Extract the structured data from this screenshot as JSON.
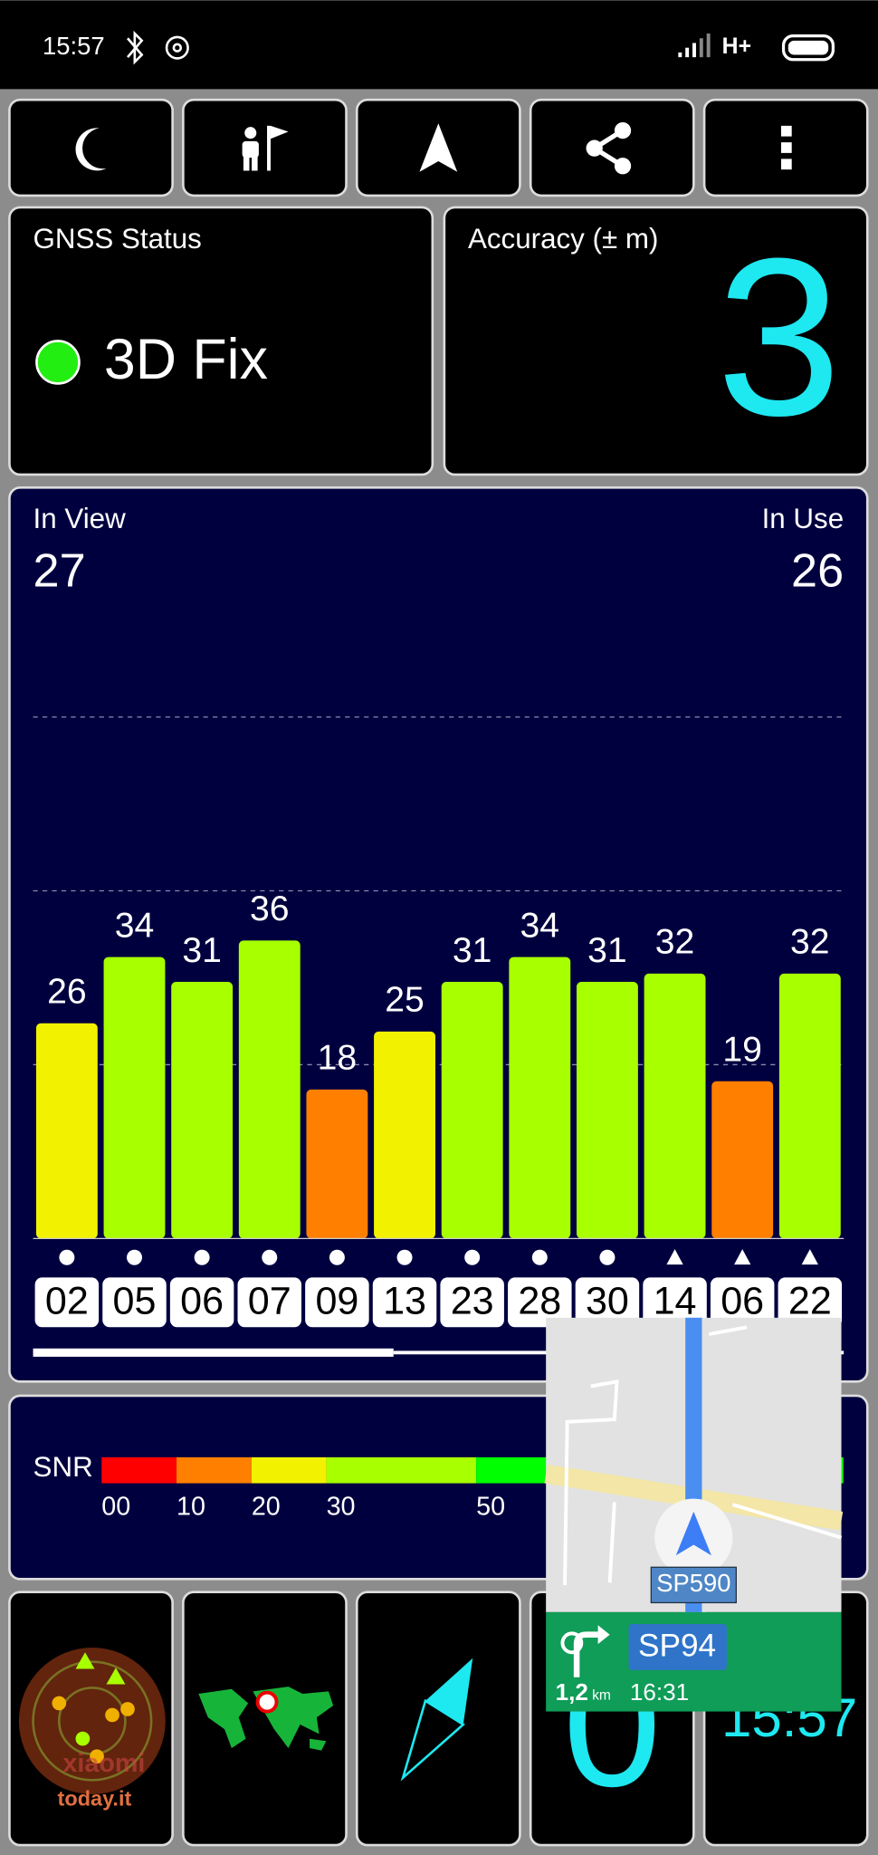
{
  "status_bar": {
    "time": "15:57",
    "network": "H+"
  },
  "gnss_status": {
    "title": "GNSS Status",
    "value": "3D Fix"
  },
  "accuracy": {
    "title": "Accuracy (± m)",
    "value": 3
  },
  "chart_data": {
    "type": "bar",
    "in_view_label": "In View",
    "in_view": 27,
    "in_use_label": "In Use",
    "in_use": 26,
    "categories": [
      "02",
      "05",
      "06",
      "07",
      "09",
      "13",
      "23",
      "28",
      "30",
      "14",
      "06",
      "22"
    ],
    "values": [
      26,
      34,
      31,
      36,
      18,
      25,
      31,
      34,
      31,
      32,
      19,
      32
    ],
    "colors": [
      "#f2f200",
      "#a8ff00",
      "#a8ff00",
      "#a8ff00",
      "#ff7f00",
      "#f2f200",
      "#a8ff00",
      "#a8ff00",
      "#a8ff00",
      "#a8ff00",
      "#ff7f00",
      "#a8ff00"
    ],
    "shapes": [
      "dot",
      "dot",
      "dot",
      "dot",
      "dot",
      "dot",
      "dot",
      "dot",
      "dot",
      "triangle",
      "triangle",
      "triangle"
    ],
    "ylim": [
      0,
      70
    ],
    "gridlines": [
      21,
      42,
      63
    ]
  },
  "snr_legend": {
    "label": "SNR",
    "ticks": [
      {
        "value": 0,
        "label": "00"
      },
      10,
      20,
      30,
      50
    ],
    "segments": [
      {
        "from": 0,
        "to": 10,
        "color": "#ff0000"
      },
      {
        "from": 10,
        "to": 20,
        "color": "#ff8000"
      },
      {
        "from": 20,
        "to": 30,
        "color": "#f2f200"
      },
      {
        "from": 30,
        "to": 50,
        "color": "#a8ff00"
      },
      {
        "from": 50,
        "to": 99,
        "color": "#00ff00"
      }
    ]
  },
  "map_overlay": {
    "road": "SP590",
    "next_road": "SP94",
    "distance": "1,2",
    "distance_unit": "km",
    "arrival": "16:31"
  },
  "speed": "0",
  "clock": "15:57",
  "watermark": {
    "brand": "xiaomi",
    "site": "today.it"
  }
}
